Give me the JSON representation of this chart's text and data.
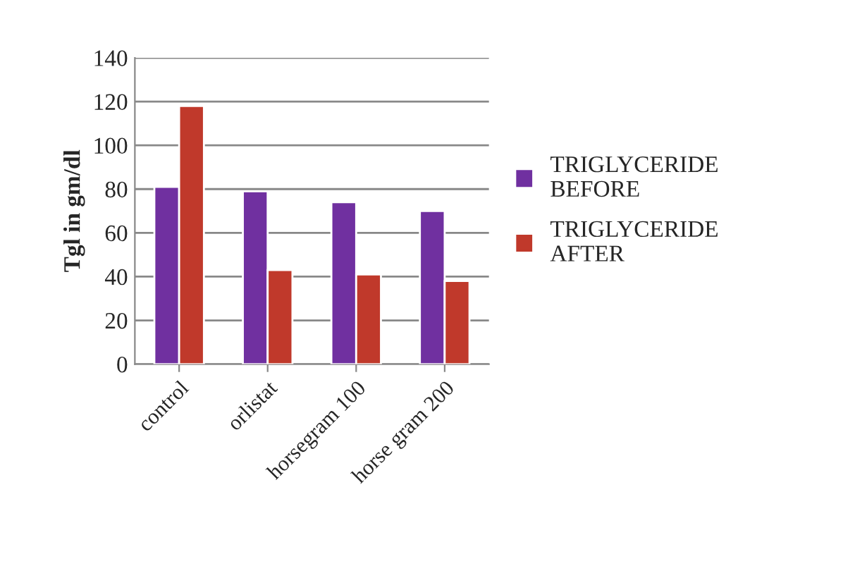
{
  "chart_data": {
    "type": "bar",
    "ylabel": "Tgl in gm/dl",
    "categories": [
      "control",
      "orlistat",
      "horsegram 100",
      "horse gram 200"
    ],
    "series": [
      {
        "name": "TRIGLYCERIDE BEFORE",
        "color": "#7030a0",
        "values": [
          81,
          79,
          74,
          70
        ]
      },
      {
        "name": "TRIGLYCERIDE AFTER",
        "color": "#c0392b",
        "values": [
          118,
          43,
          41,
          38
        ]
      }
    ],
    "ylim": [
      0,
      140
    ],
    "yticks": [
      0,
      20,
      40,
      60,
      80,
      100,
      120,
      140
    ],
    "grid": "y",
    "legend": "right"
  }
}
